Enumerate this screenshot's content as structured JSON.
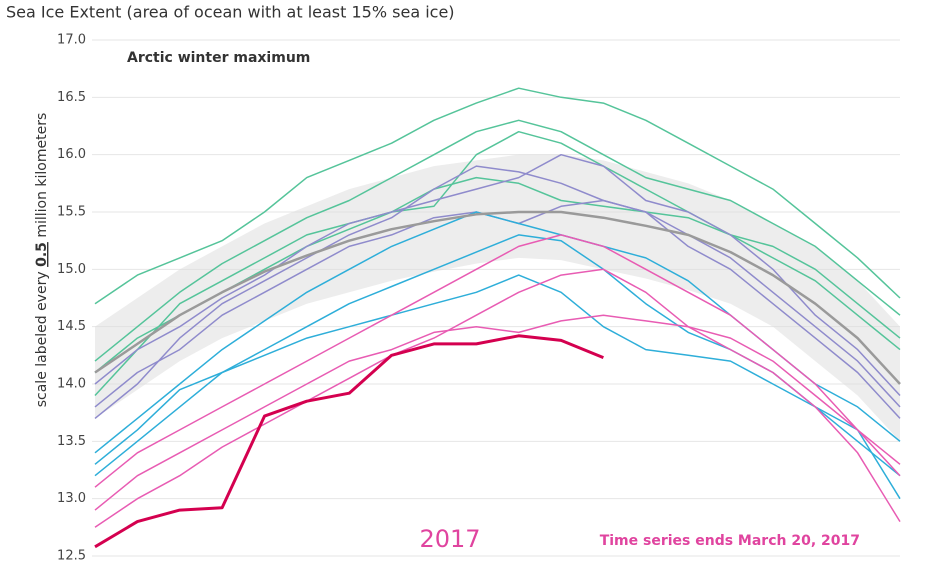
{
  "chart_data": {
    "type": "line",
    "title": "Sea Ice Extent (area of ocean with at least 15% sea ice)",
    "annotation": "Arctic winter maximum",
    "ylabel": [
      "scale labeled every ",
      "0.5",
      " million kilometers"
    ],
    "year_label": "2017",
    "end_note": "Time series ends March 20, 2017",
    "ylim": [
      12.5,
      17.0
    ],
    "yticks": [
      12.5,
      {
        "value": 13.0,
        "label": "13.0"
      },
      13.5,
      {
        "value": 14.0,
        "label": "14.0"
      },
      14.5,
      {
        "value": 15.0,
        "label": "15.0"
      },
      15.5,
      {
        "value": 16.0,
        "label": "16.0"
      },
      16.5,
      {
        "value": 17.0,
        "label": "17.0"
      }
    ],
    "grid": true,
    "band": {
      "color": "#dcdcdc",
      "mean_color": "#9a9a9a",
      "upper": [
        14.5,
        14.75,
        15.0,
        15.2,
        15.4,
        15.55,
        15.7,
        15.8,
        15.9,
        15.95,
        16.0,
        16.0,
        15.95,
        15.85,
        15.75,
        15.6,
        15.4,
        15.2,
        14.9,
        14.5
      ],
      "mean": [
        14.1,
        14.35,
        14.6,
        14.8,
        14.98,
        15.12,
        15.25,
        15.35,
        15.42,
        15.48,
        15.5,
        15.5,
        15.45,
        15.38,
        15.3,
        15.15,
        14.95,
        14.7,
        14.4,
        14.0
      ],
      "lower": [
        13.7,
        13.95,
        14.2,
        14.4,
        14.55,
        14.7,
        14.8,
        14.9,
        14.98,
        15.05,
        15.1,
        15.08,
        15.0,
        14.92,
        14.82,
        14.7,
        14.5,
        14.2,
        13.9,
        13.5
      ]
    },
    "series": [
      {
        "color": "#55c49a",
        "values": [
          14.7,
          14.95,
          15.1,
          15.25,
          15.5,
          15.8,
          15.95,
          16.1,
          16.3,
          16.45,
          16.58,
          16.5,
          16.45,
          16.3,
          16.1,
          15.9,
          15.7,
          15.4,
          15.1,
          14.75
        ]
      },
      {
        "color": "#55c49a",
        "values": [
          14.2,
          14.5,
          14.8,
          15.05,
          15.25,
          15.45,
          15.6,
          15.8,
          16.0,
          16.2,
          16.3,
          16.2,
          16.0,
          15.8,
          15.7,
          15.6,
          15.4,
          15.2,
          14.9,
          14.6
        ]
      },
      {
        "color": "#55c49a",
        "values": [
          13.9,
          14.3,
          14.7,
          14.9,
          15.1,
          15.3,
          15.4,
          15.5,
          15.7,
          15.8,
          15.75,
          15.6,
          15.55,
          15.5,
          15.45,
          15.3,
          15.1,
          14.9,
          14.6,
          14.3
        ]
      },
      {
        "color": "#55c49a",
        "values": [
          14.1,
          14.4,
          14.6,
          14.8,
          15.0,
          15.2,
          15.35,
          15.5,
          15.55,
          16.0,
          16.2,
          16.1,
          15.9,
          15.7,
          15.5,
          15.3,
          15.2,
          15.0,
          14.7,
          14.4
        ]
      },
      {
        "color": "#8f8bcc",
        "values": [
          14.0,
          14.3,
          14.5,
          14.75,
          14.95,
          15.2,
          15.4,
          15.5,
          15.6,
          15.7,
          15.8,
          16.0,
          15.9,
          15.6,
          15.5,
          15.3,
          15.0,
          14.6,
          14.3,
          13.9
        ]
      },
      {
        "color": "#8f8bcc",
        "values": [
          13.8,
          14.1,
          14.3,
          14.6,
          14.8,
          15.0,
          15.2,
          15.3,
          15.45,
          15.5,
          15.4,
          15.55,
          15.6,
          15.5,
          15.3,
          15.1,
          14.8,
          14.5,
          14.2,
          13.8
        ]
      },
      {
        "color": "#8f8bcc",
        "values": [
          13.7,
          14.0,
          14.4,
          14.7,
          14.9,
          15.1,
          15.3,
          15.45,
          15.7,
          15.9,
          15.85,
          15.75,
          15.6,
          15.5,
          15.2,
          15.0,
          14.7,
          14.4,
          14.1,
          13.7
        ]
      },
      {
        "color": "#2eaed9",
        "values": [
          13.4,
          13.7,
          14.0,
          14.3,
          14.55,
          14.8,
          15.0,
          15.2,
          15.35,
          15.5,
          15.4,
          15.3,
          15.2,
          15.1,
          14.9,
          14.6,
          14.3,
          14.0,
          13.8,
          13.5
        ]
      },
      {
        "color": "#2eaed9",
        "values": [
          13.2,
          13.5,
          13.8,
          14.1,
          14.3,
          14.5,
          14.7,
          14.85,
          15.0,
          15.15,
          15.3,
          15.25,
          15.0,
          14.7,
          14.45,
          14.3,
          14.1,
          13.8,
          13.5,
          13.2
        ]
      },
      {
        "color": "#2eaed9",
        "values": [
          13.3,
          13.6,
          13.95,
          14.1,
          14.25,
          14.4,
          14.5,
          14.6,
          14.7,
          14.8,
          14.95,
          14.8,
          14.5,
          14.3,
          14.25,
          14.2,
          14.0,
          13.8,
          13.6,
          13.0
        ]
      },
      {
        "color": "#e85cb3",
        "values": [
          13.1,
          13.4,
          13.6,
          13.8,
          14.0,
          14.2,
          14.4,
          14.6,
          14.8,
          15.0,
          15.2,
          15.3,
          15.2,
          15.0,
          14.8,
          14.6,
          14.3,
          14.0,
          13.6,
          13.2
        ]
      },
      {
        "color": "#e85cb3",
        "values": [
          12.9,
          13.2,
          13.4,
          13.6,
          13.8,
          14.0,
          14.2,
          14.3,
          14.45,
          14.5,
          14.45,
          14.55,
          14.6,
          14.55,
          14.5,
          14.3,
          14.1,
          13.8,
          13.4,
          12.8
        ]
      },
      {
        "color": "#e85cb3",
        "values": [
          12.75,
          13.0,
          13.2,
          13.45,
          13.65,
          13.85,
          14.05,
          14.25,
          14.4,
          14.6,
          14.8,
          14.95,
          15.0,
          14.8,
          14.5,
          14.4,
          14.2,
          13.9,
          13.6,
          13.3
        ]
      },
      {
        "color": "#d4004f",
        "width": 3,
        "values": [
          12.58,
          12.8,
          12.9,
          12.92,
          13.72,
          13.85,
          13.92,
          14.25,
          14.35,
          14.35,
          14.42,
          14.38,
          14.23,
          null,
          null,
          null,
          null,
          null,
          null,
          null
        ]
      }
    ]
  }
}
